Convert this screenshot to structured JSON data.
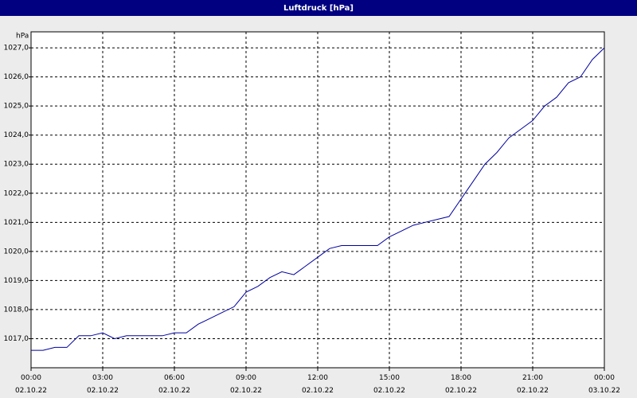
{
  "chart_data": {
    "type": "line",
    "title": "Luftdruck [hPa]",
    "y_label": "hPa",
    "x": [
      0,
      0.5,
      1,
      1.5,
      2,
      2.5,
      3,
      3.5,
      4,
      4.5,
      5,
      5.5,
      6,
      6.5,
      7,
      7.5,
      8,
      8.5,
      9,
      9.5,
      10,
      10.5,
      11,
      11.5,
      12,
      12.5,
      13,
      13.5,
      14,
      14.5,
      15,
      15.5,
      16,
      16.5,
      17,
      17.5,
      18,
      18.5,
      19,
      19.5,
      20,
      20.5,
      21,
      21.5,
      22,
      22.5,
      23,
      23.5,
      24
    ],
    "series": [
      {
        "name": "Luftdruck",
        "color": "#0000a0",
        "values": [
          1016.6,
          1016.6,
          1016.7,
          1016.7,
          1017.1,
          1017.1,
          1017.2,
          1017.0,
          1017.1,
          1017.1,
          1017.1,
          1017.1,
          1017.2,
          1017.2,
          1017.5,
          1017.7,
          1017.9,
          1018.1,
          1018.6,
          1018.8,
          1019.1,
          1019.3,
          1019.2,
          1019.5,
          1019.8,
          1020.1,
          1020.2,
          1020.2,
          1020.2,
          1020.2,
          1020.5,
          1020.7,
          1020.9,
          1021.0,
          1021.1,
          1021.2,
          1021.8,
          1022.4,
          1023.0,
          1023.4,
          1023.9,
          1024.2,
          1024.5,
          1025.0,
          1025.3,
          1025.8,
          1026.0,
          1026.6,
          1027.0
        ]
      }
    ],
    "xlim": [
      0,
      24
    ],
    "xticks": [
      {
        "value": 0,
        "label": "00:00 02.10.22"
      },
      {
        "value": 3,
        "label": "03:00 02.10.22"
      },
      {
        "value": 6,
        "label": "06:00 02.10.22"
      },
      {
        "value": 9,
        "label": "09:00 02.10.22"
      },
      {
        "value": 12,
        "label": "12:00 02.10.22"
      },
      {
        "value": 15,
        "label": "15:00 02.10.22"
      },
      {
        "value": 18,
        "label": "18:00 02.10.22"
      },
      {
        "value": 21,
        "label": "21:00 02.10.22"
      },
      {
        "value": 24,
        "label": "00:00 03.10.22"
      }
    ],
    "ylim": [
      1016.0,
      1027.55
    ],
    "yticks": [
      {
        "value": 1017,
        "label": "1017,0"
      },
      {
        "value": 1018,
        "label": "1018,0"
      },
      {
        "value": 1019,
        "label": "1019,0"
      },
      {
        "value": 1020,
        "label": "1020,0"
      },
      {
        "value": 1021,
        "label": "1021,0"
      },
      {
        "value": 1022,
        "label": "1022,0"
      },
      {
        "value": 1023,
        "label": "1023,0"
      },
      {
        "value": 1024,
        "label": "1024,0"
      },
      {
        "value": 1025,
        "label": "1025,0"
      },
      {
        "value": 1026,
        "label": "1026,0"
      },
      {
        "value": 1027,
        "label": "1027,0"
      }
    ],
    "grid": true
  }
}
